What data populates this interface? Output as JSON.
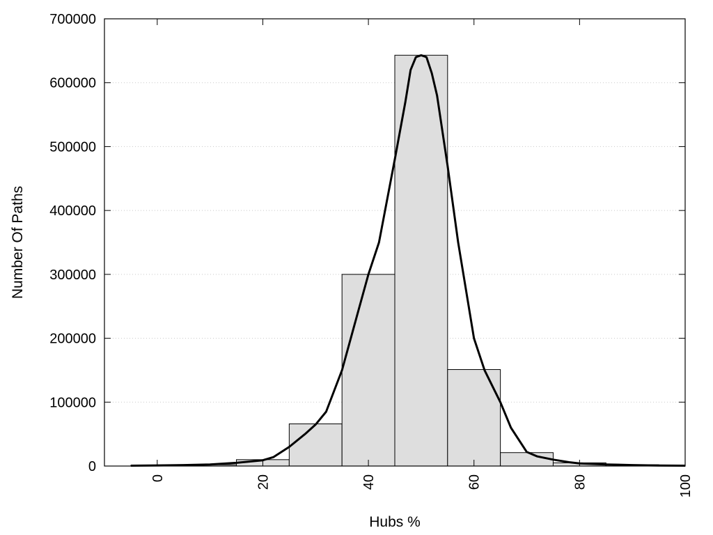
{
  "chart_data": {
    "type": "bar",
    "xlabel": "Hubs %",
    "ylabel": "Number Of Paths",
    "xlim": [
      -10,
      100
    ],
    "ylim": [
      0,
      700000
    ],
    "grid": "horizontal-dotted",
    "x_ticks": [
      0,
      20,
      40,
      60,
      80,
      100
    ],
    "y_ticks": [
      0,
      100000,
      200000,
      300000,
      400000,
      500000,
      600000,
      700000
    ],
    "bin_width": 10,
    "bars": [
      {
        "x": 0,
        "value": 1000
      },
      {
        "x": 10,
        "value": 2000
      },
      {
        "x": 20,
        "value": 10000
      },
      {
        "x": 30,
        "value": 66000
      },
      {
        "x": 40,
        "value": 300000
      },
      {
        "x": 50,
        "value": 643000
      },
      {
        "x": 60,
        "value": 151000
      },
      {
        "x": 70,
        "value": 21000
      },
      {
        "x": 80,
        "value": 5000
      },
      {
        "x": 90,
        "value": 2000
      }
    ],
    "curve": {
      "x": [
        -5,
        0,
        5,
        10,
        15,
        20,
        22,
        25,
        28,
        30,
        32,
        35,
        38,
        40,
        42,
        45,
        47,
        48,
        49,
        50,
        51,
        52,
        53,
        55,
        57,
        60,
        62,
        65,
        67,
        70,
        72,
        75,
        78,
        80,
        85,
        90,
        95,
        100
      ],
      "y": [
        500,
        1000,
        1500,
        2500,
        5000,
        9000,
        14000,
        30000,
        50000,
        65000,
        85000,
        150000,
        240000,
        300000,
        350000,
        480000,
        570000,
        620000,
        640000,
        643000,
        640000,
        615000,
        580000,
        470000,
        350000,
        200000,
        150000,
        100000,
        60000,
        22000,
        15000,
        10000,
        6000,
        4000,
        2500,
        1500,
        800,
        500
      ]
    },
    "colors": {
      "bar_fill": "#dedede",
      "bar_stroke": "#000000",
      "curve": "#000000",
      "grid": "#c8c8c8"
    }
  }
}
